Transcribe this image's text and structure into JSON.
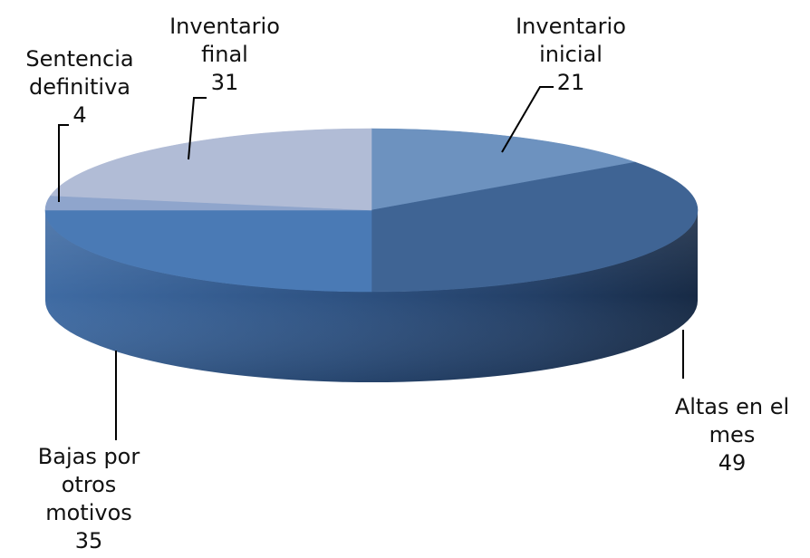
{
  "chart_data": {
    "type": "pie",
    "style": "3d",
    "title": "",
    "legend": "none",
    "slices": [
      {
        "category": "Inventario inicial",
        "value": 21,
        "label_lines": [
          "Inventario",
          "inicial"
        ],
        "color": "#6d92bf"
      },
      {
        "category": "Altas en el mes",
        "value": 49,
        "label_lines": [
          "Altas en el",
          "mes"
        ],
        "color": "#3f6494"
      },
      {
        "category": "Bajas por otros motivos",
        "value": 35,
        "label_lines": [
          "Bajas por",
          "otros",
          "motivos"
        ],
        "color": "#4a7ab5"
      },
      {
        "category": "Sentencia definitiva",
        "value": 4,
        "label_lines": [
          "Sentencia",
          "definitiva"
        ],
        "color": "#8fa5cc"
      },
      {
        "category": "Inventario final",
        "value": 31,
        "label_lines": [
          "Inventario",
          "final"
        ],
        "color": "#b1bcd6"
      }
    ]
  }
}
